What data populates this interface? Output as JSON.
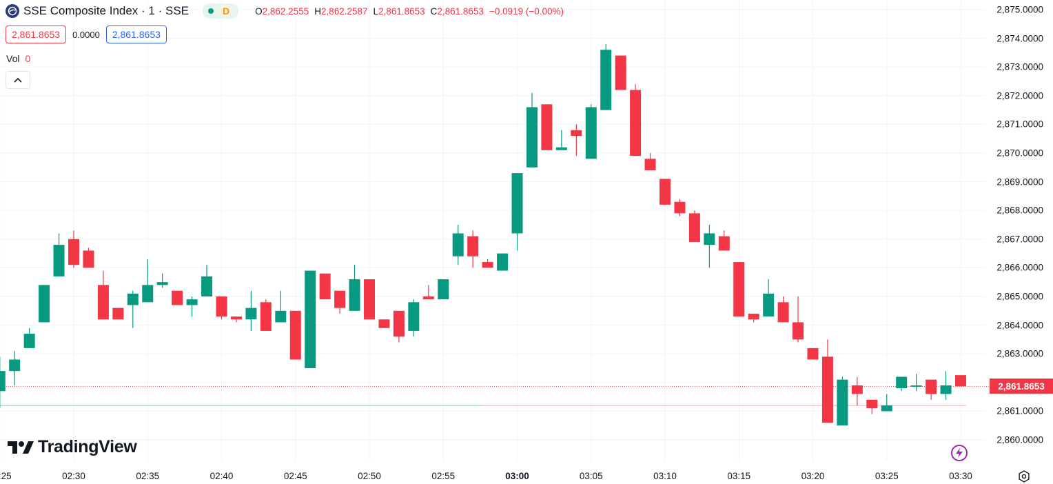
{
  "header": {
    "title": "SSE Composite Index · 1 · SSE",
    "status_flag": "D",
    "ohlc": {
      "o_label": "O",
      "o_value": "2,862.2555",
      "h_label": "H",
      "h_value": "2,862.2587",
      "l_label": "L",
      "l_value": "2,861.8653",
      "c_label": "C",
      "c_value": "2,861.8653",
      "change": "−0.0919 (−0.00%)"
    },
    "sell_price": "2,861.8653",
    "spread": "0.0000",
    "buy_price": "2,861.8653",
    "volume_label": "Vol",
    "volume_value": "0"
  },
  "branding": {
    "logo_text": "TradingView"
  },
  "colors": {
    "up": "#089981",
    "down": "#f23645",
    "grid": "#f0f3fa",
    "last_price_line": "#f23645"
  },
  "chart_data": {
    "type": "candlestick",
    "symbol": "SSE Composite Index",
    "interval": "1",
    "y_ticks": [
      2860,
      2861,
      2862,
      2863,
      2864,
      2865,
      2866,
      2867,
      2868,
      2869,
      2870,
      2871,
      2872,
      2873,
      2874,
      2875
    ],
    "y_tick_labels": [
      "2,860.0000",
      "2,861.0000",
      "2,862.0000",
      "2,863.0000",
      "2,864.0000",
      "2,865.0000",
      "2,866.0000",
      "2,867.0000",
      "2,868.0000",
      "2,869.0000",
      "2,870.0000",
      "2,871.0000",
      "2,872.0000",
      "2,873.0000",
      "2,874.0000",
      "2,875.0000"
    ],
    "x_ticks": [
      {
        "label": "02:25",
        "minute": -5
      },
      {
        "label": "02:30",
        "minute": 0
      },
      {
        "label": "02:35",
        "minute": 5
      },
      {
        "label": "02:40",
        "minute": 10
      },
      {
        "label": "02:45",
        "minute": 15
      },
      {
        "label": "02:50",
        "minute": 20
      },
      {
        "label": "02:55",
        "minute": 25
      },
      {
        "label": "03:00",
        "minute": 30,
        "bold": true
      },
      {
        "label": "03:05",
        "minute": 35
      },
      {
        "label": "03:10",
        "minute": 40
      },
      {
        "label": "03:15",
        "minute": 45
      },
      {
        "label": "03:20",
        "minute": 50
      },
      {
        "label": "03:25",
        "minute": 55
      },
      {
        "label": "03:30",
        "minute": 60
      }
    ],
    "last_price": 2861.8653,
    "last_price_label": "2,861.8653",
    "reference_price": 2861.2,
    "candles": [
      {
        "t": "02:25",
        "o": 2861.7,
        "h": 2862.9,
        "l": 2861.1,
        "c": 2862.4
      },
      {
        "t": "02:26",
        "o": 2862.4,
        "h": 2863.1,
        "l": 2861.9,
        "c": 2862.8
      },
      {
        "t": "02:27",
        "o": 2863.2,
        "h": 2863.9,
        "l": 2863.2,
        "c": 2863.7
      },
      {
        "t": "02:28",
        "o": 2864.1,
        "h": 2865.4,
        "l": 2864.1,
        "c": 2865.4
      },
      {
        "t": "02:29",
        "o": 2865.7,
        "h": 2867.2,
        "l": 2865.7,
        "c": 2866.8
      },
      {
        "t": "02:30",
        "o": 2867.0,
        "h": 2867.3,
        "l": 2866.0,
        "c": 2866.1
      },
      {
        "t": "02:31",
        "o": 2866.6,
        "h": 2866.7,
        "l": 2866.0,
        "c": 2866.0
      },
      {
        "t": "02:32",
        "o": 2865.4,
        "h": 2865.9,
        "l": 2864.2,
        "c": 2864.2
      },
      {
        "t": "02:33",
        "o": 2864.6,
        "h": 2864.6,
        "l": 2864.2,
        "c": 2864.2
      },
      {
        "t": "02:34",
        "o": 2864.7,
        "h": 2865.2,
        "l": 2863.9,
        "c": 2865.1
      },
      {
        "t": "02:35",
        "o": 2864.8,
        "h": 2866.3,
        "l": 2864.8,
        "c": 2865.4
      },
      {
        "t": "02:36",
        "o": 2865.4,
        "h": 2865.8,
        "l": 2865.3,
        "c": 2865.5
      },
      {
        "t": "02:37",
        "o": 2865.2,
        "h": 2865.2,
        "l": 2864.7,
        "c": 2864.7
      },
      {
        "t": "02:38",
        "o": 2864.7,
        "h": 2865.0,
        "l": 2864.3,
        "c": 2864.9
      },
      {
        "t": "02:39",
        "o": 2865.0,
        "h": 2866.1,
        "l": 2865.0,
        "c": 2865.7
      },
      {
        "t": "02:40",
        "o": 2865.0,
        "h": 2865.0,
        "l": 2864.2,
        "c": 2864.3
      },
      {
        "t": "02:41",
        "o": 2864.3,
        "h": 2864.3,
        "l": 2864.1,
        "c": 2864.2
      },
      {
        "t": "02:42",
        "o": 2864.2,
        "h": 2865.2,
        "l": 2863.8,
        "c": 2864.6
      },
      {
        "t": "02:43",
        "o": 2864.8,
        "h": 2864.9,
        "l": 2863.8,
        "c": 2863.8
      },
      {
        "t": "02:44",
        "o": 2864.1,
        "h": 2865.2,
        "l": 2864.1,
        "c": 2864.5
      },
      {
        "t": "02:45",
        "o": 2864.5,
        "h": 2864.5,
        "l": 2862.8,
        "c": 2862.8
      },
      {
        "t": "02:46",
        "o": 2862.5,
        "h": 2865.9,
        "l": 2862.5,
        "c": 2865.9
      },
      {
        "t": "02:47",
        "o": 2865.8,
        "h": 2865.8,
        "l": 2864.9,
        "c": 2864.9
      },
      {
        "t": "02:48",
        "o": 2865.2,
        "h": 2865.2,
        "l": 2864.4,
        "c": 2864.6
      },
      {
        "t": "02:49",
        "o": 2864.5,
        "h": 2866.1,
        "l": 2864.5,
        "c": 2865.6
      },
      {
        "t": "02:50",
        "o": 2865.6,
        "h": 2865.6,
        "l": 2864.2,
        "c": 2864.2
      },
      {
        "t": "02:51",
        "o": 2864.2,
        "h": 2864.2,
        "l": 2863.9,
        "c": 2863.9
      },
      {
        "t": "02:52",
        "o": 2864.5,
        "h": 2864.5,
        "l": 2863.4,
        "c": 2863.6
      },
      {
        "t": "02:53",
        "o": 2863.8,
        "h": 2864.9,
        "l": 2863.6,
        "c": 2864.8
      },
      {
        "t": "02:54",
        "o": 2865.0,
        "h": 2865.4,
        "l": 2864.9,
        "c": 2864.9
      },
      {
        "t": "02:55",
        "o": 2864.9,
        "h": 2865.6,
        "l": 2864.9,
        "c": 2865.6
      },
      {
        "t": "02:56",
        "o": 2866.4,
        "h": 2867.5,
        "l": 2866.1,
        "c": 2867.2
      },
      {
        "t": "02:57",
        "o": 2867.1,
        "h": 2867.3,
        "l": 2866.0,
        "c": 2866.4
      },
      {
        "t": "02:58",
        "o": 2866.2,
        "h": 2866.3,
        "l": 2866.0,
        "c": 2866.0
      },
      {
        "t": "02:59",
        "o": 2865.9,
        "h": 2866.5,
        "l": 2865.9,
        "c": 2866.5
      },
      {
        "t": "03:00",
        "o": 2867.2,
        "h": 2869.3,
        "l": 2866.6,
        "c": 2869.3
      },
      {
        "t": "03:01",
        "o": 2869.5,
        "h": 2872.1,
        "l": 2869.5,
        "c": 2871.6
      },
      {
        "t": "03:02",
        "o": 2871.7,
        "h": 2871.7,
        "l": 2870.1,
        "c": 2870.1
      },
      {
        "t": "03:03",
        "o": 2870.1,
        "h": 2870.8,
        "l": 2870.1,
        "c": 2870.2
      },
      {
        "t": "03:04",
        "o": 2870.8,
        "h": 2871.0,
        "l": 2869.9,
        "c": 2870.6
      },
      {
        "t": "03:05",
        "o": 2869.8,
        "h": 2871.7,
        "l": 2869.8,
        "c": 2871.6
      },
      {
        "t": "03:06",
        "o": 2871.5,
        "h": 2873.8,
        "l": 2871.5,
        "c": 2873.6
      },
      {
        "t": "03:07",
        "o": 2873.4,
        "h": 2873.4,
        "l": 2872.2,
        "c": 2872.2
      },
      {
        "t": "03:08",
        "o": 2872.2,
        "h": 2872.4,
        "l": 2869.9,
        "c": 2869.9
      },
      {
        "t": "03:09",
        "o": 2869.8,
        "h": 2870.0,
        "l": 2869.4,
        "c": 2869.4
      },
      {
        "t": "03:10",
        "o": 2869.1,
        "h": 2869.1,
        "l": 2868.2,
        "c": 2868.2
      },
      {
        "t": "03:11",
        "o": 2868.3,
        "h": 2868.4,
        "l": 2867.8,
        "c": 2867.9
      },
      {
        "t": "03:12",
        "o": 2867.9,
        "h": 2868.0,
        "l": 2866.9,
        "c": 2866.9
      },
      {
        "t": "03:13",
        "o": 2866.8,
        "h": 2867.5,
        "l": 2866.0,
        "c": 2867.2
      },
      {
        "t": "03:14",
        "o": 2867.1,
        "h": 2867.3,
        "l": 2866.6,
        "c": 2866.6
      },
      {
        "t": "03:15",
        "o": 2866.2,
        "h": 2866.2,
        "l": 2864.3,
        "c": 2864.3
      },
      {
        "t": "03:16",
        "o": 2864.4,
        "h": 2864.4,
        "l": 2864.1,
        "c": 2864.2
      },
      {
        "t": "03:17",
        "o": 2864.3,
        "h": 2865.6,
        "l": 2864.3,
        "c": 2865.1
      },
      {
        "t": "03:18",
        "o": 2864.8,
        "h": 2865.0,
        "l": 2864.1,
        "c": 2864.1
      },
      {
        "t": "03:19",
        "o": 2864.1,
        "h": 2865.0,
        "l": 2863.4,
        "c": 2863.5
      },
      {
        "t": "03:20",
        "o": 2863.2,
        "h": 2863.2,
        "l": 2862.8,
        "c": 2862.8
      },
      {
        "t": "03:21",
        "o": 2862.9,
        "h": 2863.5,
        "l": 2860.6,
        "c": 2860.6
      },
      {
        "t": "03:22",
        "o": 2860.5,
        "h": 2862.2,
        "l": 2860.5,
        "c": 2862.1
      },
      {
        "t": "03:23",
        "o": 2861.9,
        "h": 2862.2,
        "l": 2861.2,
        "c": 2861.6
      },
      {
        "t": "03:24",
        "o": 2861.4,
        "h": 2861.4,
        "l": 2860.9,
        "c": 2861.1
      },
      {
        "t": "03:25",
        "o": 2861.0,
        "h": 2861.6,
        "l": 2861.0,
        "c": 2861.2
      },
      {
        "t": "03:26",
        "o": 2861.8,
        "h": 2862.2,
        "l": 2861.7,
        "c": 2862.2
      },
      {
        "t": "03:27",
        "o": 2861.9,
        "h": 2862.3,
        "l": 2861.7,
        "c": 2861.9
      },
      {
        "t": "03:28",
        "o": 2862.1,
        "h": 2862.1,
        "l": 2861.4,
        "c": 2861.6
      },
      {
        "t": "03:29",
        "o": 2861.6,
        "h": 2862.4,
        "l": 2861.4,
        "c": 2861.9
      },
      {
        "t": "03:30",
        "o": 2862.2555,
        "h": 2862.2587,
        "l": 2861.8653,
        "c": 2861.8653
      }
    ]
  }
}
